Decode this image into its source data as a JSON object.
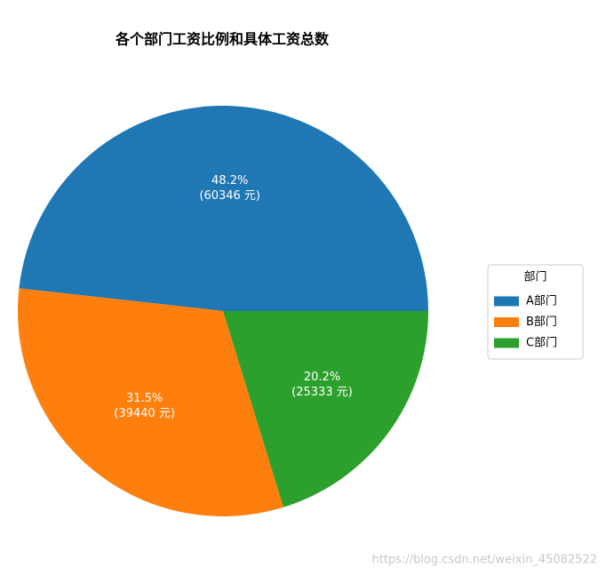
{
  "chart_data": {
    "type": "pie",
    "title": "各个部门工资比例和具体工资总数",
    "categories": [
      "A部门",
      "B部门",
      "C部门"
    ],
    "values": [
      60346,
      39440,
      25333
    ],
    "value_labels": [
      [
        "48.2%",
        "(60346 元)"
      ],
      [
        "31.5%",
        "(39440 元)"
      ],
      [
        "20.2%",
        "(25333 元)"
      ]
    ],
    "colors": [
      "#1f77b4",
      "#ff7f0e",
      "#2ca02c"
    ],
    "legend_title": "部门",
    "legend_loc": "center right",
    "watermark": "https://blog.csdn.net/weixin_45082522"
  }
}
